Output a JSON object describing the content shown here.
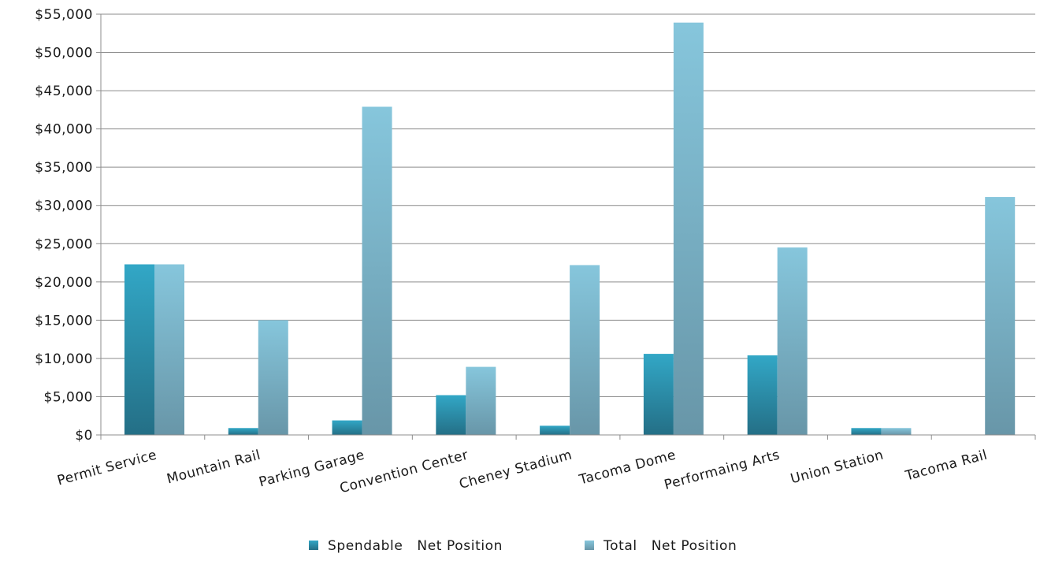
{
  "chart_data": {
    "type": "bar",
    "categories": [
      "Permit Service",
      "Mountain Rail",
      "Parking Garage",
      "Convention Center",
      "Cheney Stadium",
      "Tacoma Dome",
      "Performaing Arts",
      "Union Station",
      "Tacoma Rail"
    ],
    "series": [
      {
        "name": "Spendable   Net Position",
        "values": [
          22300,
          900,
          1900,
          5200,
          1200,
          10600,
          10400,
          900,
          0
        ],
        "color": "#2e8fa8"
      },
      {
        "name": "Total   Net Position",
        "values": [
          22300,
          15000,
          42900,
          8900,
          22200,
          53900,
          24500,
          900,
          31100
        ],
        "color": "#7ab6cc"
      }
    ],
    "title": "",
    "xlabel": "",
    "ylabel": "",
    "ylim": [
      0,
      55000
    ],
    "ytick_step": 5000,
    "ytick_labels": [
      "$0",
      "$5,000",
      "$10,000",
      "$15,000",
      "$20,000",
      "$25,000",
      "$30,000",
      "$35,000",
      "$40,000",
      "$45,000",
      "$50,000",
      "$55,000"
    ],
    "grid": true,
    "legend": "bottom-center",
    "x_label_rotation": -15
  }
}
